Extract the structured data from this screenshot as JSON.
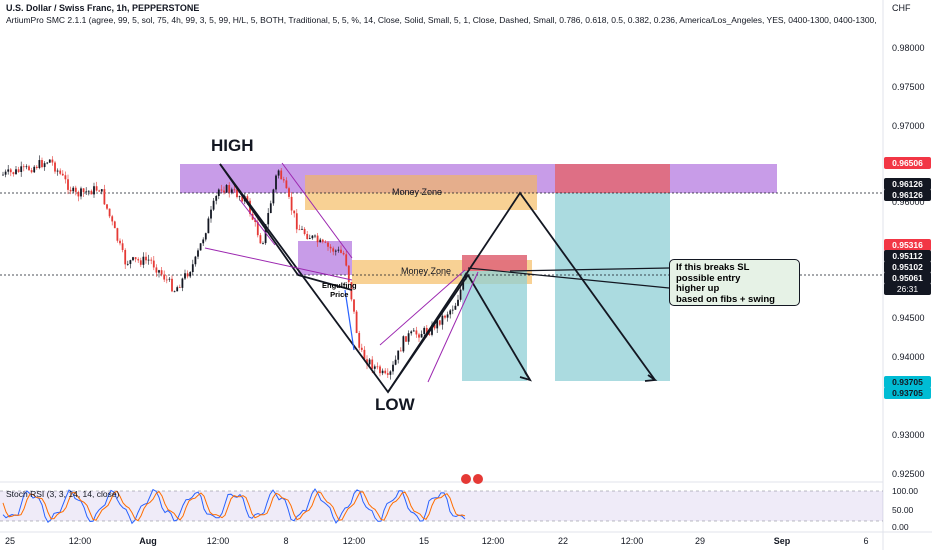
{
  "header": {
    "title": "U.S. Dollar / Swiss Franc, 1h, PEPPERSTONE",
    "indicator": "ArtiumPro SMC 2.1.1 (agree, 99, 5, sol, 75, 4h, 99, 3, 5, 99, H/L, 5, BOTH, Traditional, 5, 5, %, 14, Close, Solid, Small, 5, 1, Close, Dashed, Small, 0.786, 0.618, 0.5, 0.382, 0.236, America/Los_Angeles, YES, 0400-1300, 0400-1300,",
    "currency": "CHF"
  },
  "y_axis": {
    "labels": [
      "0.98000",
      "0.97500",
      "0.97000",
      "0.96000",
      "0.94500",
      "0.94000",
      "0.93500",
      "0.93000",
      "0.92500"
    ]
  },
  "price_tags": {
    "red_top": "0.96506",
    "black_1": "0.96126",
    "black_2": "0.96126",
    "red_mid": "0.95316",
    "black_3": "0.95112",
    "black_4": "0.95102",
    "black_5": "0.95061",
    "timer": "26:31",
    "cyan_1": "0.93705",
    "cyan_2": "0.93705"
  },
  "x_axis": {
    "labels": [
      "25",
      "12:00",
      "Aug",
      "12:00",
      "8",
      "12:00",
      "15",
      "12:00",
      "22",
      "12:00",
      "29",
      "Sep",
      "6"
    ]
  },
  "annotations": {
    "high": "HIGH",
    "low": "LOW",
    "money_zone_1": "Money Zone",
    "money_zone_2": "Money Zone",
    "engulfing": [
      "Engulfing",
      "Price"
    ],
    "note": [
      "If this breaks SL",
      "possible entry",
      "higher up",
      "based on fibs + swing"
    ]
  },
  "rsi": {
    "title": "Stoch RSI (3, 3, 14, 14, close)",
    "levels": [
      "100.00",
      "50.00",
      "0.00"
    ]
  },
  "colors": {
    "candle_up": "#131722",
    "candle_down": "#e53935",
    "purple_zone": "#b57be0",
    "orange_zone": "#f5b85a",
    "target_zone": "#8fcfd6",
    "stop_zone": "#e06a7a",
    "rsi_k": "#2962ff",
    "rsi_d": "#ff6d00"
  }
}
